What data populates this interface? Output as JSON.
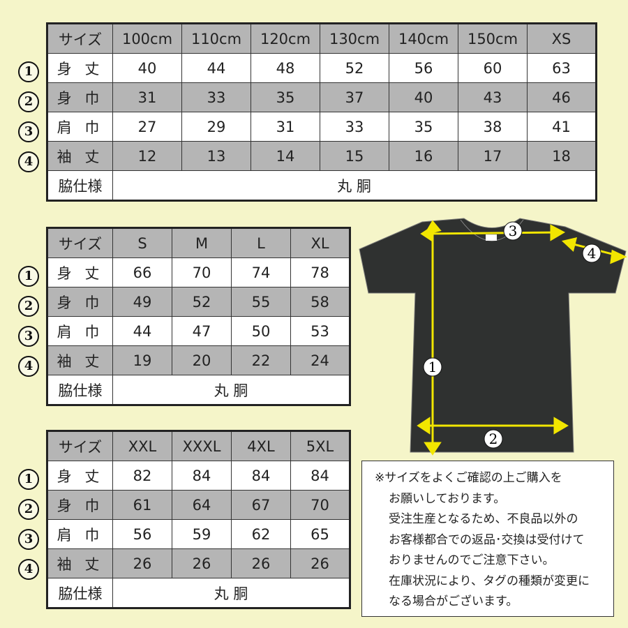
{
  "row_labels": [
    "身 丈",
    "身 巾",
    "肩 巾",
    "袖 丈"
  ],
  "row_markers": [
    "1",
    "2",
    "3",
    "4"
  ],
  "header_label": "サイズ",
  "side_label": "脇仕様",
  "side_value": "丸 胴",
  "tables": [
    {
      "sizes": [
        "100cm",
        "110cm",
        "120cm",
        "130cm",
        "140cm",
        "150cm",
        "XS"
      ],
      "rows": [
        [
          "40",
          "44",
          "48",
          "52",
          "56",
          "60",
          "63"
        ],
        [
          "31",
          "33",
          "35",
          "37",
          "40",
          "43",
          "46"
        ],
        [
          "27",
          "29",
          "31",
          "33",
          "35",
          "38",
          "41"
        ],
        [
          "12",
          "13",
          "14",
          "15",
          "16",
          "17",
          "18"
        ]
      ]
    },
    {
      "sizes": [
        "S",
        "M",
        "L",
        "XL"
      ],
      "rows": [
        [
          "66",
          "70",
          "74",
          "78"
        ],
        [
          "49",
          "52",
          "55",
          "58"
        ],
        [
          "44",
          "47",
          "50",
          "53"
        ],
        [
          "19",
          "20",
          "22",
          "24"
        ]
      ]
    },
    {
      "sizes": [
        "XXL",
        "XXXL",
        "4XL",
        "5XL"
      ],
      "rows": [
        [
          "82",
          "84",
          "84",
          "84"
        ],
        [
          "61",
          "64",
          "67",
          "70"
        ],
        [
          "56",
          "59",
          "62",
          "65"
        ],
        [
          "26",
          "26",
          "26",
          "26"
        ]
      ]
    }
  ],
  "diagram": {
    "markers": [
      "1",
      "2",
      "3",
      "4"
    ],
    "shirt_color": "#2f3130",
    "arrow_color": "#f2e600"
  },
  "note_lines": [
    "※サイズをよくご確認の上ご購入を",
    "お願いしております。",
    "受注生産となるため、不良品以外の",
    "お客様都合での返品･交換は受付けて",
    "おりませんのでご注意下さい。",
    "在庫状況により、タグの種類が変更に",
    "なる場合がございます。"
  ],
  "colors": {
    "background": "#f5f5c9",
    "gray_row": "#b5b5b5"
  }
}
